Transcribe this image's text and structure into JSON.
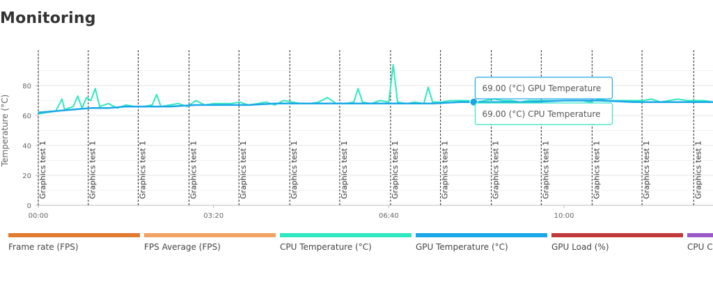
{
  "page": {
    "title": "Monitoring"
  },
  "chart_data": {
    "type": "line",
    "ylabel": "Temperature (°C)",
    "ylim": [
      0,
      100
    ],
    "yticks": [
      0,
      20,
      40,
      60,
      80
    ],
    "x_unit": "seconds",
    "xlim": [
      0,
      770
    ],
    "xticks": [
      {
        "value": 0,
        "label": "00:00"
      },
      {
        "value": 200,
        "label": "03:20"
      },
      {
        "value": 400,
        "label": "06:40"
      },
      {
        "value": 600,
        "label": "10:00"
      }
    ],
    "grid": true,
    "markers": [
      {
        "x": 0,
        "label": "Graphics test 1"
      },
      {
        "x": 57,
        "label": "Graphics test 1"
      },
      {
        "x": 114,
        "label": "Graphics test 1"
      },
      {
        "x": 172,
        "label": "Graphics test 1"
      },
      {
        "x": 229,
        "label": "Graphics test 1"
      },
      {
        "x": 287,
        "label": "Graphics test 1"
      },
      {
        "x": 344,
        "label": "Graphics test 1"
      },
      {
        "x": 402,
        "label": "Graphics test 1"
      },
      {
        "x": 459,
        "label": "Graphics test 1"
      },
      {
        "x": 517,
        "label": "Graphics test 1"
      },
      {
        "x": 574,
        "label": "Graphics test 1"
      },
      {
        "x": 632,
        "label": "Graphics test 1"
      },
      {
        "x": 689,
        "label": "Graphics test 1"
      },
      {
        "x": 748,
        "label": "Graphics test 1"
      }
    ],
    "series": [
      {
        "name": "CPU Temperature (°C)",
        "color": "#2de8c0",
        "x": [
          0,
          10,
          20,
          27,
          30,
          40,
          45,
          50,
          55,
          60,
          65,
          70,
          80,
          90,
          100,
          110,
          120,
          130,
          135,
          140,
          150,
          160,
          170,
          180,
          190,
          200,
          210,
          220,
          230,
          240,
          250,
          260,
          270,
          280,
          290,
          300,
          310,
          320,
          330,
          340,
          350,
          360,
          365,
          370,
          380,
          390,
          400,
          405,
          410,
          420,
          430,
          440,
          445,
          450,
          460,
          470,
          480,
          490,
          500,
          510,
          520,
          530,
          540,
          550,
          560,
          570,
          580,
          590,
          600,
          610,
          620,
          630,
          640,
          650,
          660,
          670,
          680,
          690,
          700,
          710,
          720,
          730,
          740,
          750,
          760,
          770
        ],
        "values": [
          61,
          62,
          63,
          71,
          64,
          66,
          73,
          65,
          72,
          70,
          78,
          66,
          68,
          65,
          67,
          66,
          66,
          67,
          74,
          66,
          67,
          68,
          66,
          70,
          67,
          68,
          68,
          68,
          69,
          67,
          68,
          69,
          67,
          70,
          69,
          68,
          68,
          69,
          72,
          68,
          68,
          69,
          78,
          69,
          68,
          70,
          69,
          94,
          69,
          68,
          69,
          68,
          79,
          69,
          69,
          70,
          70,
          70,
          69,
          70,
          71,
          70,
          70,
          69,
          70,
          70,
          70,
          70,
          70,
          70,
          70,
          69,
          71,
          70,
          70,
          70,
          70,
          70,
          71,
          69,
          70,
          71,
          70,
          70,
          70,
          69
        ]
      },
      {
        "name": "GPU Temperature (°C)",
        "color": "#1aa7e8",
        "x": [
          0,
          20,
          40,
          60,
          80,
          100,
          120,
          150,
          180,
          210,
          240,
          270,
          300,
          330,
          360,
          390,
          420,
          450,
          480,
          497,
          520,
          560,
          600,
          640,
          680,
          720,
          770
        ],
        "values": [
          62,
          63,
          64,
          65,
          65,
          66,
          66,
          66,
          67,
          67,
          67,
          68,
          68,
          68,
          68,
          68,
          68,
          68,
          69,
          69,
          69,
          69,
          70,
          70,
          69,
          69,
          69
        ]
      }
    ],
    "tooltip": {
      "x": 497,
      "lines": [
        "69.00 (°C) GPU Temperature",
        "69.00 (°C) CPU Temperature"
      ]
    },
    "legend": [
      {
        "label": "Frame rate (FPS)",
        "color": "#e07b30"
      },
      {
        "label": "FPS Average (FPS)",
        "color": "#f0a363"
      },
      {
        "label": "CPU Temperature (°C)",
        "color": "#2de8c0"
      },
      {
        "label": "GPU Temperature (°C)",
        "color": "#1aa7e8"
      },
      {
        "label": "GPU Load (%)",
        "color": "#c0393b"
      },
      {
        "label": "CPU Clo",
        "color": "#9b59c5"
      }
    ]
  }
}
